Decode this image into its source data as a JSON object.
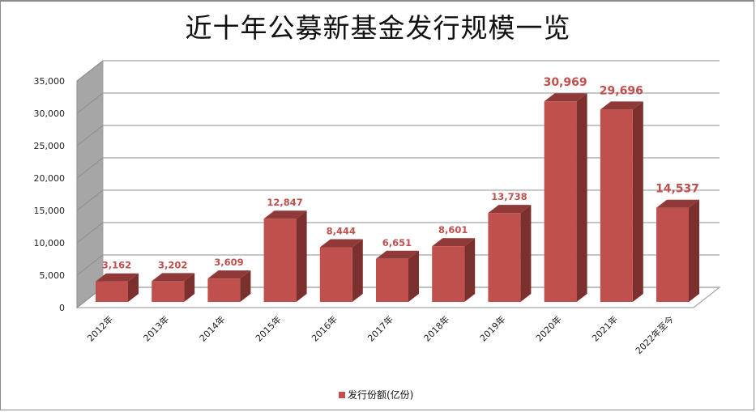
{
  "title": "近十年公募新基金发行规模一览",
  "legend": {
    "label": "发行份额(亿份)",
    "color": "#c0504d"
  },
  "colors": {
    "bar_front": "#c0504d",
    "bar_top": "#8f3a38",
    "bar_side": "#7b302e",
    "label": "#c0504d",
    "wall_side": "#a6a6a6",
    "grid": "#a6a6a6"
  },
  "chart_data": {
    "type": "bar",
    "title": "近十年公募新基金发行规模一览",
    "xlabel": "",
    "ylabel": "",
    "categories": [
      "2012年",
      "2013年",
      "2014年",
      "2015年",
      "2016年",
      "2017年",
      "2018年",
      "2019年",
      "2020年",
      "2021年",
      "2022年至今"
    ],
    "series": [
      {
        "name": "发行份额(亿份)",
        "values": [
          3162,
          3202,
          3609,
          12847,
          8444,
          6651,
          8601,
          13738,
          30969,
          29696,
          14537
        ]
      }
    ],
    "data_labels": [
      "3,162",
      "3,202",
      "3,609",
      "12,847",
      "8,444",
      "6,651",
      "8,601",
      "13,738",
      "30,969",
      "29,696",
      "14,537"
    ],
    "ylim": [
      0,
      35000
    ],
    "yticks": [
      "0",
      "5,000",
      "10,000",
      "15,000",
      "20,000",
      "25,000",
      "30,000",
      "35,000"
    ],
    "grid": true,
    "legend_position": "bottom",
    "style": "3d-column"
  }
}
